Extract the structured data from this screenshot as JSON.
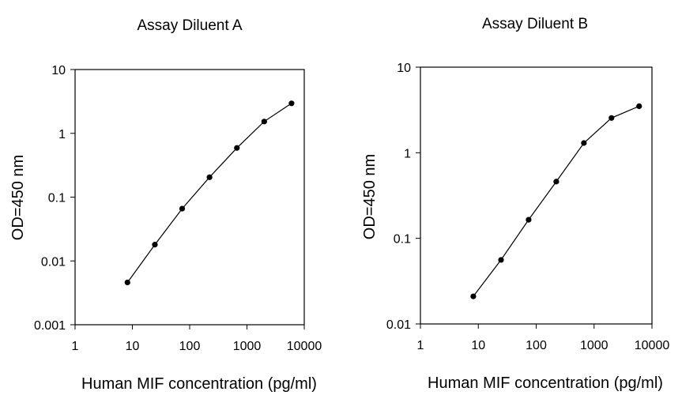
{
  "chart_data": [
    {
      "type": "line",
      "title": "Assay Diluent A",
      "xlabel": "Human MIF concentration (pg/ml)",
      "ylabel": "OD=450 nm",
      "x_scale": "log",
      "y_scale": "log",
      "xlim": [
        1,
        10000
      ],
      "ylim": [
        0.001,
        10
      ],
      "x_ticks": [
        "1",
        "10",
        "100",
        "1000",
        "10000"
      ],
      "y_ticks": [
        "0.001",
        "0.01",
        "0.1",
        "1",
        "10"
      ],
      "grid": false,
      "marker": "circle",
      "series": [
        {
          "x": [
            8.2,
            24.7,
            74,
            222,
            667,
            2000,
            6000
          ],
          "y": [
            0.0046,
            0.018,
            0.066,
            0.205,
            0.59,
            1.53,
            2.95
          ]
        }
      ]
    },
    {
      "type": "line",
      "title": "Assay Diluent B",
      "xlabel": "Human MIF concentration (pg/ml)",
      "ylabel": "OD=450 nm",
      "x_scale": "log",
      "y_scale": "log",
      "xlim": [
        1,
        10000
      ],
      "ylim": [
        0.01,
        10
      ],
      "x_ticks": [
        "1",
        "10",
        "100",
        "1000",
        "10000"
      ],
      "y_ticks": [
        "0.01",
        "0.1",
        "1",
        "10"
      ],
      "grid": false,
      "marker": "circle",
      "series": [
        {
          "x": [
            8.2,
            24.7,
            74,
            222,
            667,
            2000,
            6000
          ],
          "y": [
            0.021,
            0.056,
            0.165,
            0.46,
            1.3,
            2.55,
            3.5
          ]
        }
      ]
    }
  ]
}
